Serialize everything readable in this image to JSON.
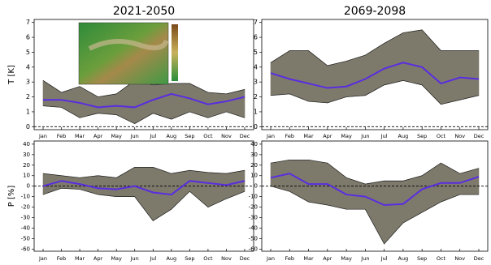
{
  "chart_data": [
    {
      "type": "line",
      "title": "2021-2050",
      "ylabel": "T [K]",
      "categories": [
        "Jan",
        "Feb",
        "Mar",
        "Apr",
        "May",
        "Jun",
        "Jul",
        "Aug",
        "Sep",
        "Oct",
        "Nov",
        "Dec"
      ],
      "ylim": [
        -0.2,
        7.2
      ],
      "yticks": [
        0,
        1,
        2,
        3,
        4,
        5,
        6,
        7
      ],
      "hline": 0,
      "series": [
        {
          "color": "#5a2de0",
          "values": [
            1.8,
            1.8,
            1.6,
            1.3,
            1.4,
            1.3,
            1.8,
            2.2,
            1.9,
            1.5,
            1.7,
            2.0
          ]
        }
      ],
      "band": {
        "color": "#7d7a6c",
        "upper": [
          3.1,
          2.3,
          2.7,
          2.0,
          2.2,
          3.1,
          2.8,
          2.9,
          2.9,
          2.3,
          2.2,
          2.5
        ],
        "lower": [
          1.4,
          1.3,
          0.6,
          0.9,
          0.8,
          0.2,
          0.9,
          0.5,
          1.0,
          0.6,
          1.0,
          0.6
        ]
      }
    },
    {
      "type": "line",
      "title": "2069-2098",
      "categories": [
        "Jan",
        "Feb",
        "Mar",
        "Apr",
        "May",
        "Jun",
        "Jul",
        "Aug",
        "Sep",
        "Oct",
        "Nov",
        "Dec"
      ],
      "ylim": [
        -0.2,
        7.2
      ],
      "yticks": [
        0,
        1,
        2,
        3,
        4,
        5,
        6,
        7
      ],
      "hline": 0,
      "series": [
        {
          "color": "#5a2de0",
          "values": [
            3.6,
            3.2,
            2.9,
            2.6,
            2.7,
            3.2,
            3.9,
            4.3,
            4.0,
            2.9,
            3.3,
            3.2
          ]
        }
      ],
      "band": {
        "color": "#7d7a6c",
        "upper": [
          4.3,
          5.1,
          5.1,
          4.1,
          4.4,
          4.8,
          5.6,
          6.3,
          6.5,
          5.1,
          5.1,
          5.1
        ],
        "lower": [
          2.1,
          2.2,
          1.7,
          1.6,
          2.0,
          2.1,
          2.8,
          3.1,
          2.8,
          1.5,
          1.8,
          2.1
        ]
      }
    },
    {
      "type": "line",
      "ylabel": "P [%]",
      "categories": [
        "Jan",
        "Feb",
        "Mar",
        "Apr",
        "May",
        "Jun",
        "Jul",
        "Aug",
        "Sep",
        "Oct",
        "Nov",
        "Dec"
      ],
      "ylim": [
        -62,
        43
      ],
      "yticks": [
        -60,
        -50,
        -40,
        -30,
        -20,
        -10,
        0,
        10,
        20,
        30,
        40
      ],
      "hline": 0,
      "series": [
        {
          "color": "#5a2de0",
          "values": [
            0,
            5,
            2,
            -2,
            -3,
            0,
            -6,
            -8,
            5,
            3,
            1,
            5
          ]
        }
      ],
      "band": {
        "color": "#7d7a6c",
        "upper": [
          12,
          10,
          8,
          10,
          8,
          18,
          18,
          12,
          15,
          13,
          12,
          15
        ],
        "lower": [
          -8,
          -2,
          -3,
          -8,
          -10,
          -10,
          -33,
          -22,
          -5,
          -20,
          -12,
          -5
        ]
      }
    },
    {
      "type": "line",
      "categories": [
        "Jan",
        "Feb",
        "Mar",
        "Apr",
        "May",
        "Jun",
        "Jul",
        "Aug",
        "Sep",
        "Oct",
        "Nov",
        "Dec"
      ],
      "ylim": [
        -62,
        43
      ],
      "yticks": [
        -60,
        -50,
        -40,
        -30,
        -20,
        -10,
        0,
        10,
        20,
        30,
        40
      ],
      "hline": 0,
      "series": [
        {
          "color": "#5a2de0",
          "values": [
            8,
            12,
            2,
            2,
            -8,
            -10,
            -18,
            -17,
            -3,
            3,
            3,
            9
          ]
        }
      ],
      "band": {
        "color": "#7d7a6c",
        "upper": [
          22,
          25,
          25,
          22,
          8,
          2,
          5,
          5,
          10,
          22,
          12,
          17
        ],
        "lower": [
          0,
          -5,
          -15,
          -18,
          -22,
          -22,
          -55,
          -35,
          -25,
          -15,
          -8,
          -8
        ]
      }
    }
  ]
}
